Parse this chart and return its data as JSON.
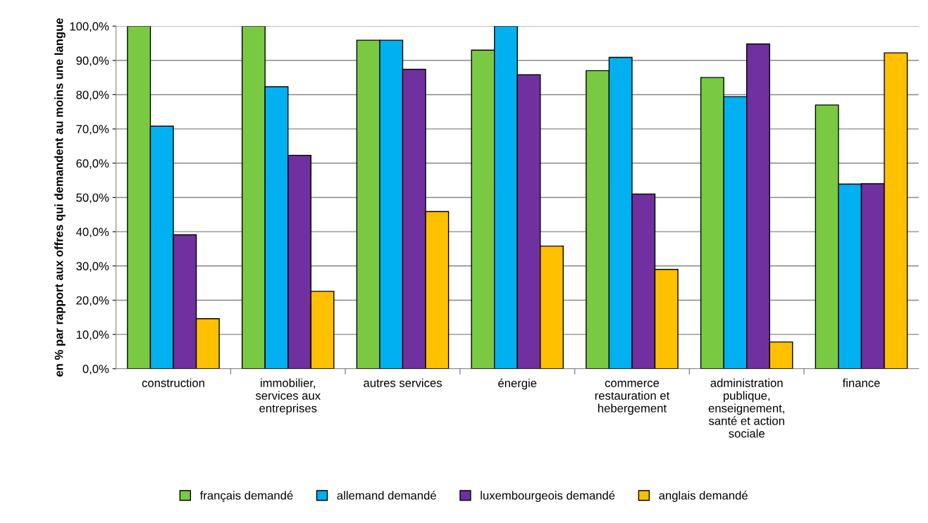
{
  "chart_data": {
    "type": "bar",
    "ylabel": "en % par rapport aux offres qui demandent au moins une langue",
    "categories": [
      "construction",
      "immobilier,\nservices aux\nentreprises",
      "autres services",
      "énergie",
      "commerce\nrestauration et\nhebergement",
      "administration\npublique,\nenseignement,\nsanté et action\nsociale",
      "finance"
    ],
    "series": [
      {
        "name": "français demandé",
        "color": "#7ac943",
        "values": [
          100,
          100,
          95.9,
          93,
          87,
          85,
          77
        ]
      },
      {
        "name": "allemand demandé",
        "color": "#00b0f0",
        "values": [
          70.8,
          82.3,
          95.9,
          100,
          90.9,
          79.4,
          53.9
        ]
      },
      {
        "name": "luxembourgeois demandé",
        "color": "#7030a0",
        "values": [
          39.1,
          62.3,
          87.4,
          85.8,
          51,
          94.8,
          54
        ]
      },
      {
        "name": "anglais demandé",
        "color": "#ffc000",
        "values": [
          14.6,
          22.6,
          45.9,
          35.8,
          29,
          7.8,
          92.2
        ]
      }
    ],
    "ylim": [
      0,
      100
    ],
    "yticks": [
      {
        "value": 0,
        "label": "0,0%"
      },
      {
        "value": 10,
        "label": "10,0%"
      },
      {
        "value": 20,
        "label": "20,0%"
      },
      {
        "value": 30,
        "label": "30,0%"
      },
      {
        "value": 40,
        "label": "40,0%"
      },
      {
        "value": 50,
        "label": "50,0%"
      },
      {
        "value": 60,
        "label": "60,0%"
      },
      {
        "value": 70,
        "label": "70,0%"
      },
      {
        "value": 80,
        "label": "80,0%"
      },
      {
        "value": 90,
        "label": "90,0%"
      },
      {
        "value": 100,
        "label": "100,0%"
      }
    ],
    "grid": "y",
    "legend": "bottom"
  }
}
